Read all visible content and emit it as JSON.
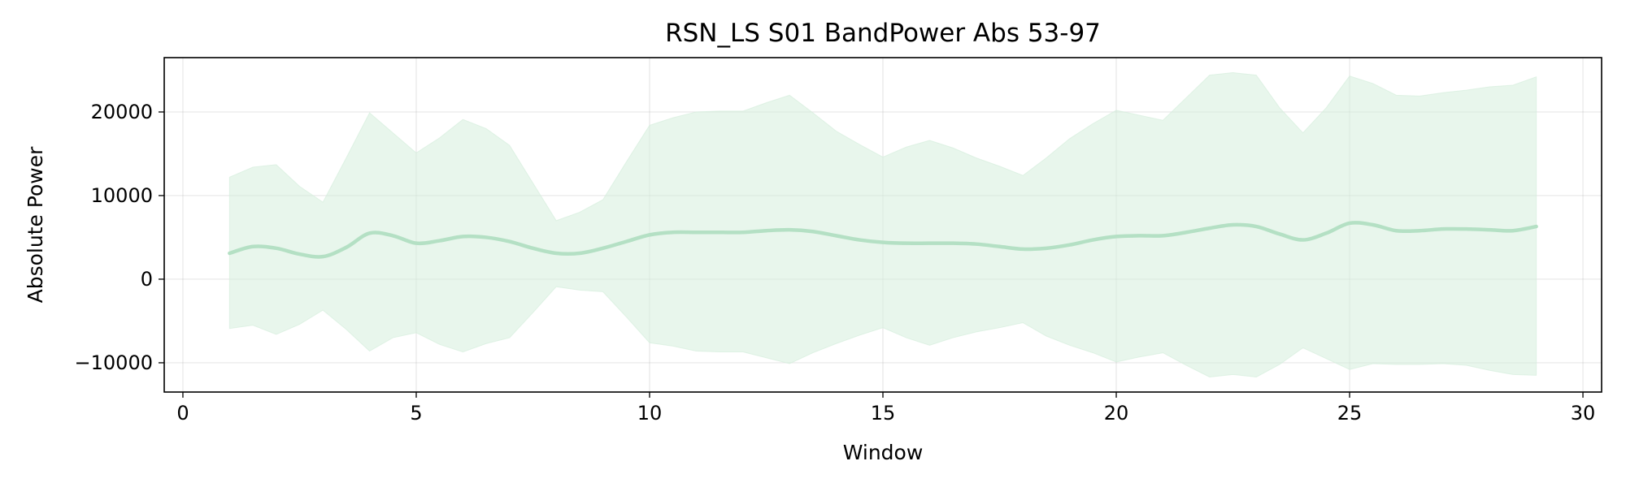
{
  "chart_data": {
    "type": "line",
    "title": "RSN_LS S01 BandPower Abs 53-97",
    "xlabel": "Window",
    "ylabel": "Absolute Power",
    "xlim": [
      -0.4,
      30.4
    ],
    "ylim": [
      -13500,
      26500
    ],
    "x_ticks": [
      0,
      5,
      10,
      15,
      20,
      25,
      30
    ],
    "x_tick_labels": [
      "0",
      "5",
      "10",
      "15",
      "20",
      "25",
      "30"
    ],
    "y_ticks": [
      -10000,
      0,
      10000,
      20000
    ],
    "y_tick_labels": [
      "−10000",
      "0",
      "10000",
      "20000"
    ],
    "grid": true,
    "legend": "none",
    "colors": {
      "line": "#b4e0c4",
      "band": "#d6eedd"
    },
    "series": [
      {
        "x": [
          1,
          1.5,
          2,
          2.5,
          3,
          3.5,
          4,
          4.5,
          5,
          5.5,
          6,
          6.5,
          7,
          7.5,
          8,
          8.5,
          9,
          9.5,
          10,
          10.5,
          11,
          11.5,
          12,
          12.5,
          13,
          13.5,
          14,
          14.5,
          15,
          15.5,
          16,
          16.5,
          17,
          17.5,
          18,
          18.5,
          19,
          19.5,
          20,
          20.5,
          21,
          21.5,
          22,
          22.5,
          23,
          23.5,
          24,
          24.5,
          25,
          25.5,
          26,
          26.5,
          27,
          27.5,
          28,
          28.5,
          29
        ],
        "mean": [
          3100,
          3900,
          3700,
          3000,
          2700,
          3800,
          5500,
          5200,
          4300,
          4600,
          5100,
          5000,
          4500,
          3700,
          3100,
          3100,
          3700,
          4500,
          5300,
          5600,
          5600,
          5600,
          5600,
          5800,
          5900,
          5700,
          5200,
          4700,
          4400,
          4300,
          4300,
          4300,
          4200,
          3900,
          3600,
          3700,
          4100,
          4700,
          5100,
          5200,
          5200,
          5600,
          6100,
          6500,
          6300,
          5400,
          4700,
          5500,
          6700,
          6500,
          5800,
          5800,
          6000,
          6000,
          5900,
          5800,
          6300
        ],
        "upper": [
          12200,
          13400,
          13700,
          11100,
          9200,
          14500,
          19900,
          17500,
          15100,
          16900,
          19100,
          18000,
          16000,
          11500,
          7000,
          8000,
          9500,
          14000,
          18400,
          19300,
          20000,
          20100,
          20100,
          21100,
          22000,
          19900,
          17700,
          16100,
          14600,
          15800,
          16600,
          15700,
          14500,
          13500,
          12400,
          14500,
          16800,
          18600,
          20200,
          19600,
          19000,
          21700,
          24400,
          24700,
          24400,
          20500,
          17500,
          20500,
          24300,
          23400,
          22000,
          21900,
          22300,
          22600,
          23000,
          23200,
          24200
        ],
        "lower": [
          -5900,
          -5500,
          -6600,
          -5400,
          -3700,
          -6000,
          -8600,
          -7000,
          -6400,
          -7800,
          -8700,
          -7700,
          -7000,
          -4000,
          -900,
          -1300,
          -1500,
          -4500,
          -7600,
          -8000,
          -8600,
          -8700,
          -8700,
          -9400,
          -10100,
          -8800,
          -7700,
          -6700,
          -5800,
          -7000,
          -7900,
          -7000,
          -6300,
          -5800,
          -5200,
          -6800,
          -7900,
          -8800,
          -9900,
          -9300,
          -8800,
          -10300,
          -11700,
          -11400,
          -11700,
          -10200,
          -8200,
          -9500,
          -10800,
          -10100,
          -10200,
          -10200,
          -10100,
          -10300,
          -10900,
          -11400,
          -11500
        ]
      }
    ]
  }
}
